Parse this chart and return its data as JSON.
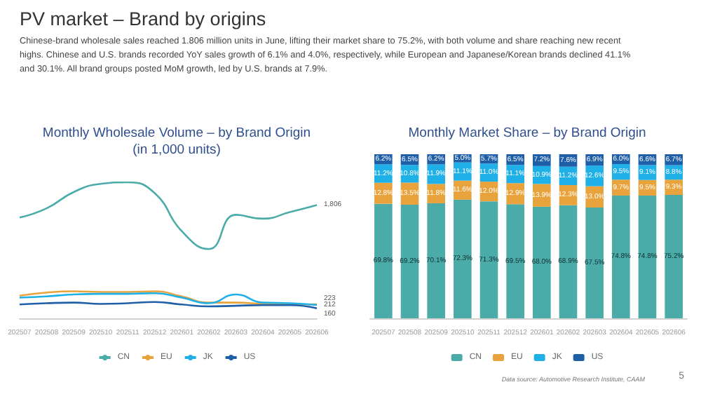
{
  "chart_data": [
    {
      "type": "other",
      "title": "PV market – Brand by origins",
      "subtitle": "Chinese-brand wholesale sales reached 1.806 million units in June, lifting their market share to 75.2%, with both volume and share reaching new recent highs. Chinese and U.S. brands recorded YoY sales growth of 6.1% and 4.0%, respectively, while European and Japanese/Korean brands declined 41.1% and 30.1%. All brand groups posted MoM growth, led by U.S. brands at 7.9%.",
      "annotations": [
        "Data source: Automotive Research Institute, CAAM",
        "5"
      ]
    },
    {
      "type": "line",
      "title": "Monthly Wholesale Volume – by Brand Origin\n(in 1,000 units)",
      "tick_labels": "x",
      "marker": "none",
      "legend": "bottom",
      "grid": false,
      "categories": [
        "202507",
        "202508",
        "202509",
        "202510",
        "202511",
        "202512",
        "202601",
        "202602",
        "202603",
        "202604",
        "202605",
        "202606"
      ],
      "series": [
        {
          "name": "CN",
          "color": "#4aaba8",
          "values": [
            1606,
            1754,
            2013,
            2143,
            2169,
            1996,
            1390,
            1104,
            1650,
            1589,
            1693,
            1806
          ],
          "value_labels": [
            null,
            null,
            null,
            null,
            null,
            null,
            null,
            null,
            null,
            null,
            null,
            "1,806"
          ]
        },
        {
          "name": "EU",
          "color": "#e8a33d",
          "values": [
            360,
            410,
            430,
            420,
            420,
            430,
            350,
            250,
            250,
            230,
            220,
            223
          ],
          "value_labels": [
            null,
            null,
            null,
            null,
            null,
            null,
            null,
            null,
            null,
            null,
            null,
            "223"
          ]
        },
        {
          "name": "JK",
          "color": "#1fb0e8",
          "values": [
            330,
            350,
            380,
            390,
            390,
            400,
            330,
            240,
            380,
            250,
            240,
            212
          ],
          "value_labels": [
            null,
            null,
            null,
            null,
            null,
            null,
            null,
            null,
            null,
            null,
            null,
            "212"
          ]
        },
        {
          "name": "US",
          "color": "#1f5fa8",
          "values": [
            220,
            240,
            250,
            230,
            240,
            260,
            220,
            190,
            200,
            210,
            210,
            160
          ],
          "value_labels": [
            null,
            null,
            null,
            null,
            null,
            null,
            null,
            null,
            null,
            null,
            null,
            "160"
          ]
        }
      ]
    },
    {
      "type": "bar",
      "title": "Monthly Market Share – by Brand Origin",
      "stacked": true,
      "legend": "bottom",
      "grid": false,
      "tick_labels": "x",
      "categories": [
        "202507",
        "202508",
        "202509",
        "202510",
        "202511",
        "202512",
        "202601",
        "202602",
        "202603",
        "202604",
        "202605",
        "202606"
      ],
      "series": [
        {
          "name": "CN",
          "color": "#4aaba8",
          "values": [
            69.8,
            69.2,
            70.1,
            72.3,
            71.3,
            69.5,
            68.0,
            68.9,
            67.5,
            74.8,
            74.8,
            75.2
          ],
          "value_labels": [
            "69.8%",
            "69.2%",
            "70.1%",
            "72.3%",
            "71.3%",
            "69.5%",
            "68.0%",
            "68.9%",
            "67.5%",
            "74.8%",
            "74.8%",
            "75.2%"
          ]
        },
        {
          "name": "EU",
          "color": "#e8a33d",
          "values": [
            12.8,
            13.5,
            11.8,
            11.6,
            12.0,
            12.9,
            13.9,
            12.3,
            13.0,
            9.7,
            9.5,
            9.3
          ],
          "value_labels": [
            "12.8%",
            "13.5%",
            "11.8%",
            "11.6%",
            "12.0%",
            "12.9%",
            "13.9%",
            "12.3%",
            "13.0%",
            "9.7%",
            "9.5%",
            "9.3%"
          ]
        },
        {
          "name": "JK",
          "color": "#1fb0e8",
          "values": [
            11.2,
            10.8,
            11.9,
            11.1,
            11.0,
            11.1,
            10.9,
            11.2,
            12.6,
            9.5,
            9.1,
            8.8
          ],
          "value_labels": [
            "11.2%",
            "10.8%",
            "11.9%",
            "11.1%",
            "11.0%",
            "11.1%",
            "10.9%",
            "11.2%",
            "12.6%",
            "9.5%",
            "9.1%",
            "8.8%"
          ]
        },
        {
          "name": "US",
          "color": "#1f5fa8",
          "values": [
            6.2,
            6.5,
            6.2,
            5.0,
            5.7,
            6.5,
            7.2,
            7.6,
            6.9,
            6.0,
            6.6,
            6.7
          ],
          "value_labels": [
            "6.2%",
            "6.5%",
            "6.2%",
            "5.0%",
            "5.7%",
            "6.5%",
            "7.2%",
            "7.6%",
            "6.9%",
            "6.0%",
            "6.6%",
            "6.7%"
          ]
        }
      ]
    }
  ]
}
